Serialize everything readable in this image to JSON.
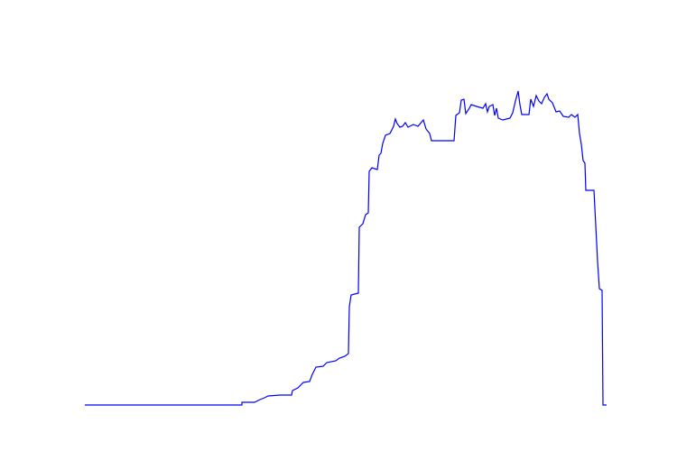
{
  "chart_data": {
    "type": "line",
    "color": "#0000ff",
    "x": [
      0,
      174,
      174,
      188,
      194,
      199,
      203,
      216,
      229,
      230,
      236,
      242,
      249,
      252,
      256,
      264,
      268,
      278,
      282,
      288,
      292,
      293,
      295,
      303,
      304,
      308,
      311,
      314,
      315,
      318,
      324,
      326,
      328,
      330,
      333,
      338,
      342,
      344,
      346,
      349,
      352,
      355,
      358,
      364,
      369,
      375,
      378,
      382,
      384,
      409,
      411,
      415,
      417,
      420,
      422,
      426,
      428,
      434,
      441,
      444,
      446,
      448,
      452,
      454,
      456,
      458,
      463,
      471,
      474,
      477,
      480,
      482,
      484,
      492,
      494,
      497,
      500,
      503,
      506,
      509,
      512,
      514,
      518,
      522,
      526,
      530,
      536,
      539,
      543,
      546,
      548,
      550,
      552,
      554,
      555,
      564,
      566,
      568,
      570,
      573,
      574,
      578
    ],
    "values": [
      0,
      0,
      3,
      3,
      6,
      8,
      10,
      11,
      11,
      16,
      19,
      25,
      26,
      34,
      42,
      43,
      47,
      49,
      52,
      54,
      57,
      109,
      122,
      124,
      197,
      201,
      211,
      213,
      259,
      263,
      261,
      277,
      279,
      290,
      299,
      301,
      309,
      317,
      312,
      308,
      309,
      313,
      308,
      311,
      309,
      316,
      306,
      301,
      293,
      293,
      321,
      324,
      338,
      339,
      323,
      329,
      333,
      331,
      329,
      334,
      325,
      331,
      333,
      321,
      329,
      318,
      316,
      318,
      324,
      337,
      348,
      333,
      322,
      322,
      339,
      331,
      343,
      337,
      334,
      341,
      345,
      339,
      335,
      325,
      326,
      320,
      319,
      322,
      319,
      322,
      301,
      289,
      271,
      268,
      238,
      238,
      199,
      159,
      129,
      127,
      0,
      0
    ],
    "xlim": [
      0,
      578
    ],
    "ylim": [
      0,
      350
    ]
  }
}
